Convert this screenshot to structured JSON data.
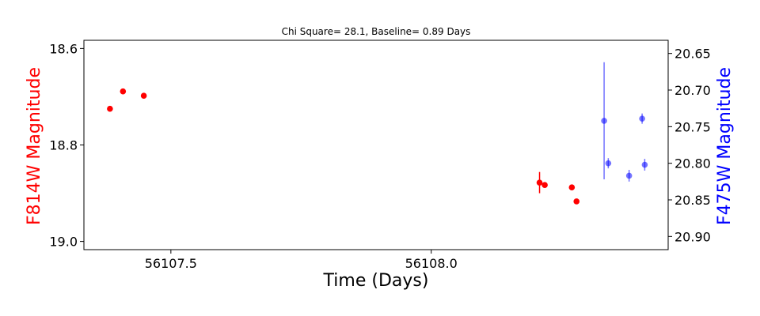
{
  "chart_data": {
    "type": "scatter",
    "title": "Chi Square= 28.1, Baseline= 0.89 Days",
    "xlabel": "Time (Days)",
    "ylabel_left": "F814W Magnitude",
    "ylabel_right": "F475W Magnitude",
    "xlim": [
      56107.333,
      56108.455
    ],
    "ylim_left": [
      19.017,
      18.583
    ],
    "ylim_right": [
      20.918,
      20.632
    ],
    "x_ticks": [
      56107.5,
      56108.0
    ],
    "x_tick_labels": [
      "56107.5",
      "56108.0"
    ],
    "y_left_ticks": [
      18.6,
      18.8,
      19.0
    ],
    "y_left_tick_labels": [
      "18.6",
      "18.8",
      "19.0"
    ],
    "y_right_ticks": [
      20.65,
      20.7,
      20.75,
      20.8,
      20.85,
      20.9
    ],
    "y_right_tick_labels": [
      "20.65",
      "20.70",
      "20.75",
      "20.80",
      "20.85",
      "20.90"
    ],
    "grid": false,
    "series": [
      {
        "axis": "left",
        "color": "#ff0000",
        "opacity": 1.0,
        "points": [
          {
            "x": 56107.383,
            "y": 18.725,
            "err": 0.002
          },
          {
            "x": 56107.408,
            "y": 18.689,
            "err": 0.002
          },
          {
            "x": 56107.448,
            "y": 18.698,
            "err": 0.002
          },
          {
            "x": 56108.208,
            "y": 18.878,
            "err": 0.022
          },
          {
            "x": 56108.218,
            "y": 18.883,
            "err": 0.002
          },
          {
            "x": 56108.27,
            "y": 18.888,
            "err": 0.002
          },
          {
            "x": 56108.279,
            "y": 18.917,
            "err": 0.002
          }
        ]
      },
      {
        "axis": "right",
        "color": "#0000ff",
        "opacity": 0.55,
        "points": [
          {
            "x": 56108.332,
            "y": 20.742,
            "err": 0.08
          },
          {
            "x": 56108.34,
            "y": 20.8,
            "err": 0.007
          },
          {
            "x": 56108.38,
            "y": 20.817,
            "err": 0.008
          },
          {
            "x": 56108.405,
            "y": 20.739,
            "err": 0.007
          },
          {
            "x": 56108.41,
            "y": 20.802,
            "err": 0.008
          }
        ]
      }
    ]
  }
}
